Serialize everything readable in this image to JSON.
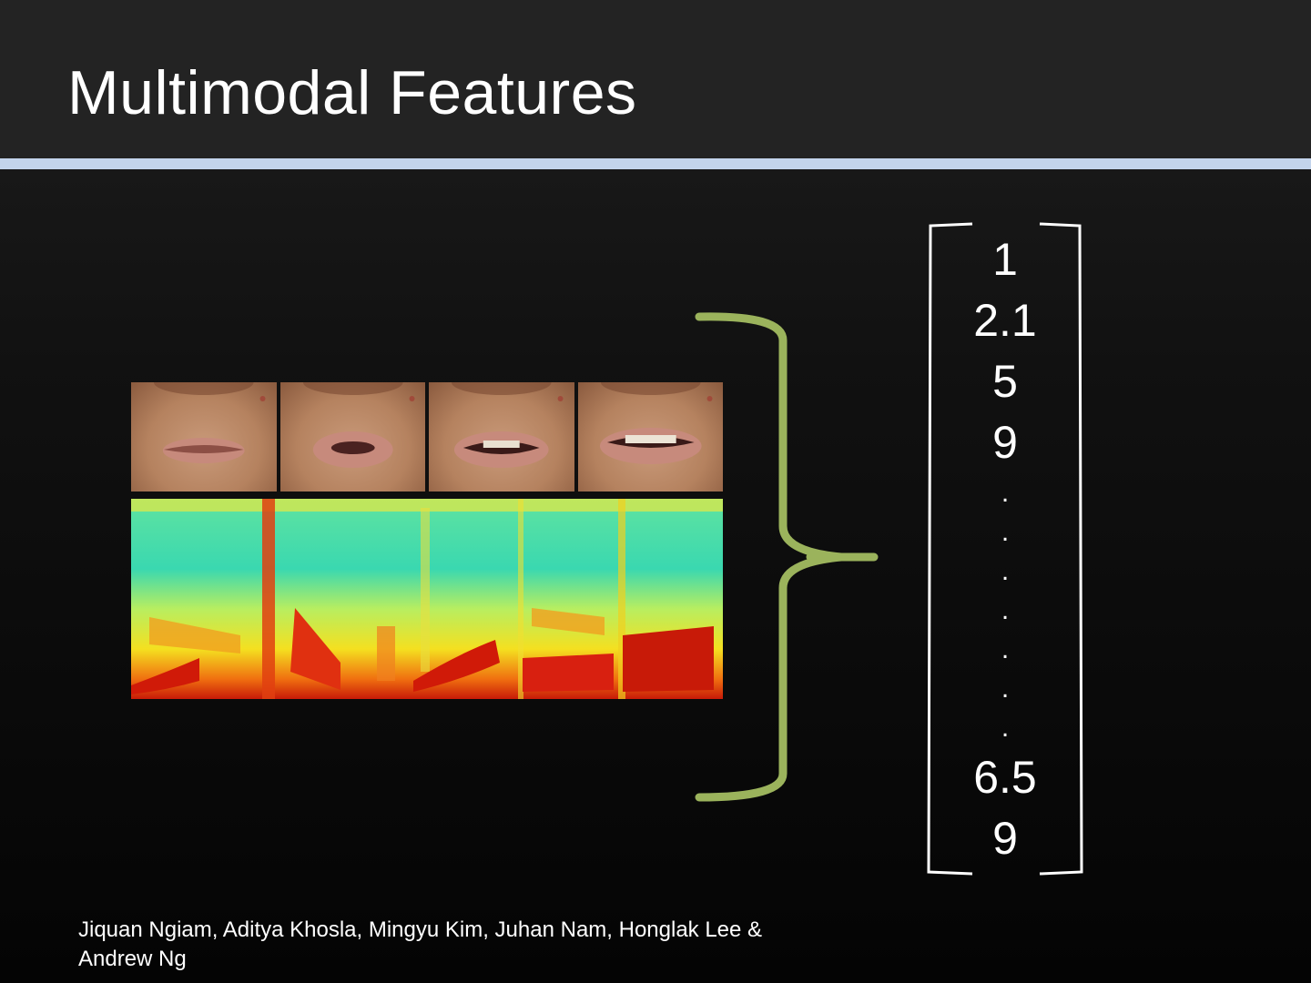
{
  "slide": {
    "title": "Multimodal Features",
    "vector": {
      "top_values": [
        "1",
        "2.1",
        "5",
        "9"
      ],
      "dots": [
        ".",
        ".",
        ".",
        ".",
        ".",
        ".",
        "."
      ],
      "bottom_values": [
        "6.5",
        "9"
      ]
    },
    "footer": {
      "line1": "Jiquan Ngiam, Aditya Khosla, Mingyu Kim, Juhan Nam, Honglak Lee &",
      "line2": "Andrew Ng"
    },
    "colors": {
      "accent_line": "#c3d4ec",
      "brace": "#9bb35c",
      "background": "#0a0a0a"
    }
  }
}
